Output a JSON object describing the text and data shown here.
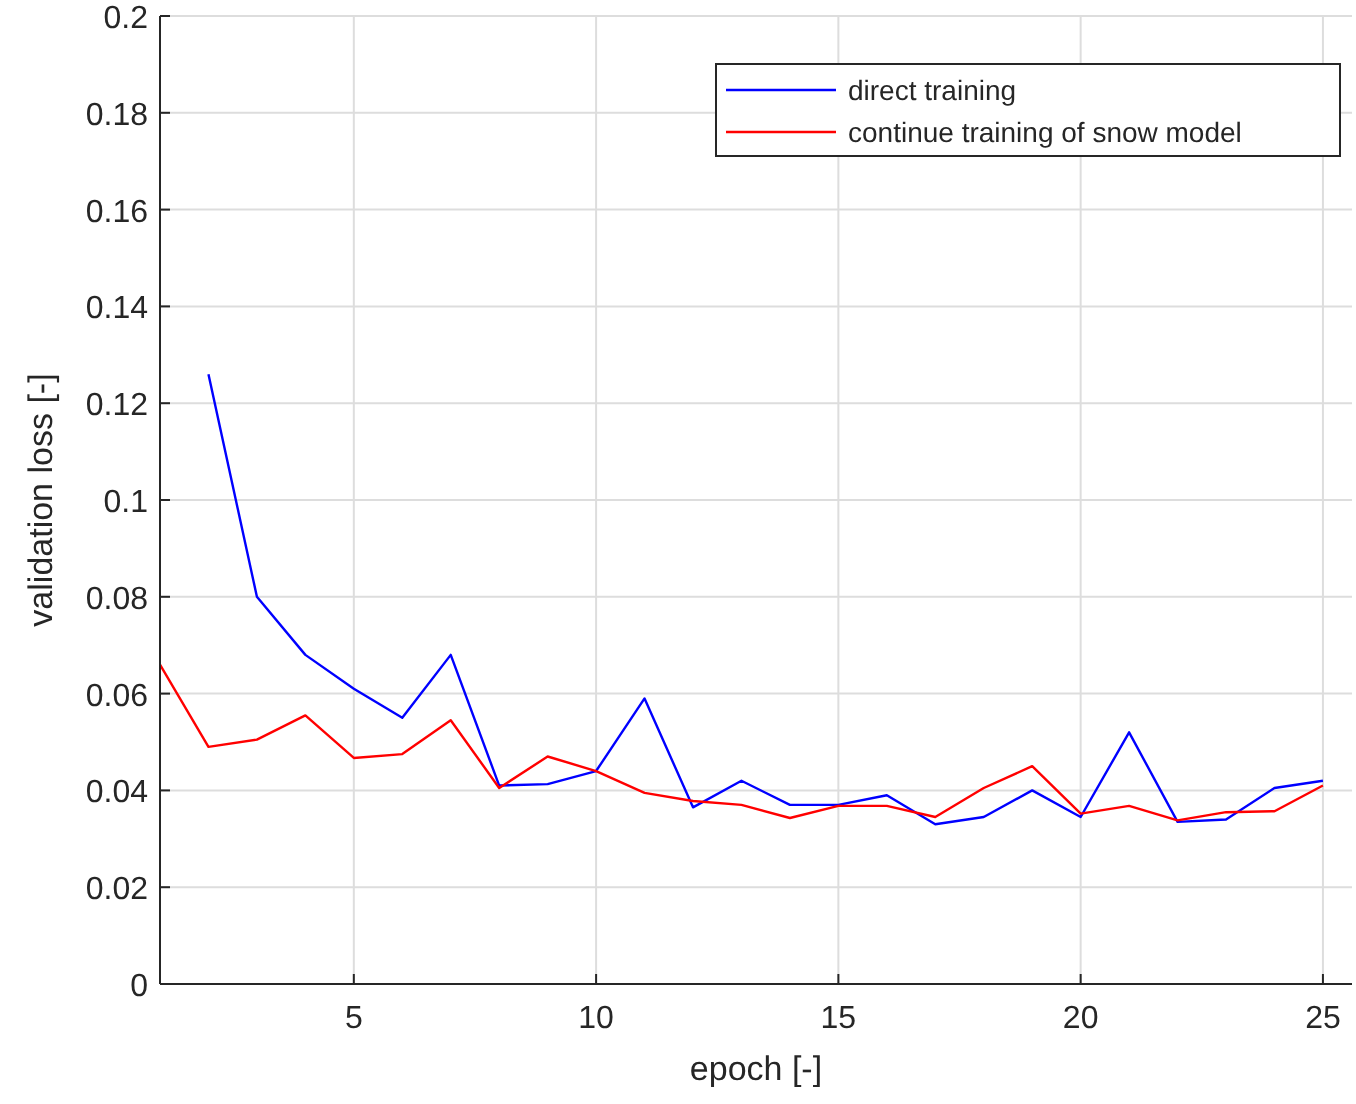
{
  "chart_data": {
    "type": "line",
    "xlabel": "epoch [-]",
    "ylabel": "validation loss [-]",
    "x": [
      1,
      2,
      3,
      4,
      5,
      6,
      7,
      8,
      9,
      10,
      11,
      12,
      13,
      14,
      15,
      16,
      17,
      18,
      19,
      20,
      21,
      22,
      23,
      24,
      25
    ],
    "series": [
      {
        "name": "direct training",
        "color": "#0000ff",
        "values": [
          null,
          0.126,
          0.08,
          0.068,
          0.061,
          0.055,
          0.068,
          0.041,
          0.0413,
          0.044,
          0.059,
          0.0365,
          0.042,
          0.037,
          0.037,
          0.039,
          0.033,
          0.0345,
          0.04,
          0.0345,
          0.052,
          0.0335,
          0.034,
          0.0405,
          0.042
        ]
      },
      {
        "name": "continue training of snow model",
        "color": "#ff0000",
        "values": [
          0.066,
          0.049,
          0.0505,
          0.0555,
          0.0467,
          0.0475,
          0.0545,
          0.0405,
          0.047,
          0.044,
          0.0395,
          0.0378,
          0.037,
          0.0343,
          0.0368,
          0.0368,
          0.0345,
          0.0405,
          0.045,
          0.0352,
          0.0368,
          0.0338,
          0.0355,
          0.0357,
          0.041
        ]
      }
    ],
    "xlim": [
      1,
      25.6
    ],
    "xticks": [
      5,
      10,
      15,
      20,
      25
    ],
    "ylim": [
      0,
      0.2
    ],
    "yticks": [
      0,
      0.02,
      0.04,
      0.06,
      0.08,
      0.1,
      0.12,
      0.14,
      0.16,
      0.18,
      0.2
    ],
    "grid": true,
    "legend": "top right",
    "line_style": "solid",
    "marker": "none"
  }
}
